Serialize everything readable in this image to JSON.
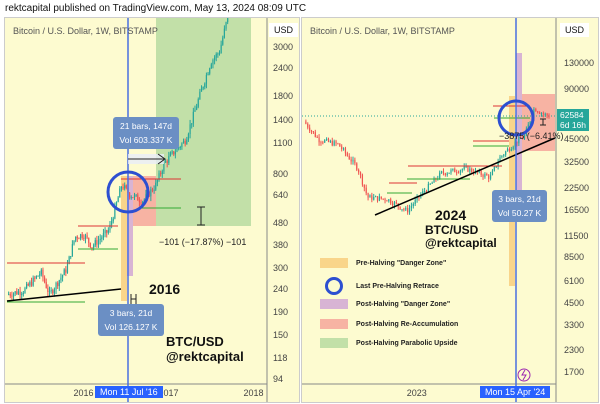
{
  "header": "rektcapital published on TradingView.com, May 13, 2024 08:09 UTC",
  "colors": {
    "pre_halving": "#f9d58a",
    "post_danger": "#d8b4d4",
    "reaccum": "#f7b3a3",
    "parabolic": "#c2e0a8",
    "circle": "#2d4fd1",
    "up": "#26a69a",
    "down": "#ef5350",
    "halving_line": "#4a6fe0"
  },
  "chart_data": [
    {
      "type": "candlestick",
      "title": "Bitcoin / U.S. Dollar, 1W, BITSTAMP",
      "currency": "USD",
      "yscale": "log",
      "ytick_labels": [
        "3000",
        "2400",
        "1800",
        "1400",
        "1100",
        "800",
        "640",
        "480",
        "380",
        "300",
        "240",
        "190",
        "150",
        "118",
        "94"
      ],
      "xtick_labels": [
        "2016",
        "2017",
        "2018"
      ],
      "cursor_date": "Mon 11 Jul '16",
      "price_path": [
        [
          2015.1,
          230
        ],
        [
          2015.3,
          240
        ],
        [
          2015.5,
          290
        ],
        [
          2015.6,
          230
        ],
        [
          2015.8,
          300
        ],
        [
          2015.9,
          420
        ],
        [
          2016.0,
          430
        ],
        [
          2016.1,
          380
        ],
        [
          2016.3,
          450
        ],
        [
          2016.45,
          720
        ],
        [
          2016.55,
          650
        ],
        [
          2016.7,
          610
        ],
        [
          2016.85,
          720
        ],
        [
          2016.95,
          900
        ],
        [
          2017.05,
          1000
        ],
        [
          2017.2,
          1150
        ],
        [
          2017.4,
          2000
        ],
        [
          2017.5,
          2600
        ],
        [
          2017.6,
          2900
        ],
        [
          2017.7,
          4200
        ]
      ],
      "annotations": {
        "measure_top": [
          "21 bars, 147d",
          "Vol 603.337 K"
        ],
        "measure_bottom": [
          "3 bars, 21d",
          "Vol 126.127 K"
        ],
        "range": "−101 (−17.87%) −101",
        "year": "2016",
        "title1": "BTC/USD",
        "title2": "@rektcapital"
      }
    },
    {
      "type": "candlestick",
      "title": "Bitcoin / U.S. Dollar, 1W, BITSTAMP",
      "currency": "USD",
      "yscale": "log",
      "ytick_labels": [
        "130000",
        "90000",
        "45000",
        "32500",
        "22500",
        "16500",
        "11500",
        "8500",
        "6100",
        "4500",
        "3300",
        "2300",
        "1700"
      ],
      "xtick_labels": [
        "2023"
      ],
      "cursor_date": "Mon 15 Apr '24",
      "last_price": "62584",
      "countdown": "6d 16h",
      "price_path": [
        [
          2021.85,
          58000
        ],
        [
          2022.0,
          45000
        ],
        [
          2022.2,
          42000
        ],
        [
          2022.4,
          30000
        ],
        [
          2022.5,
          20000
        ],
        [
          2022.7,
          19500
        ],
        [
          2022.9,
          16500
        ],
        [
          2023.05,
          21000
        ],
        [
          2023.25,
          28000
        ],
        [
          2023.5,
          30000
        ],
        [
          2023.75,
          26500
        ],
        [
          2023.85,
          35000
        ],
        [
          2024.0,
          43000
        ],
        [
          2024.1,
          47000
        ],
        [
          2024.2,
          70000
        ],
        [
          2024.3,
          64000
        ],
        [
          2024.36,
          62584
        ]
      ],
      "annotations": {
        "measure": [
          "3 bars, 21d",
          "Vol 50.27 K"
        ],
        "range": "−3875 (−6.41%)",
        "year": "2024",
        "title1": "BTC/USD",
        "title2": "@rektcapital"
      },
      "legend": [
        "Pre-Halving \"Danger Zone\"",
        "Last Pre-Halving Retrace",
        "Post-Halving \"Danger Zone\"",
        "Post-Halving Re-Accumulation",
        "Post-Halving Parabolic Upside"
      ]
    }
  ]
}
